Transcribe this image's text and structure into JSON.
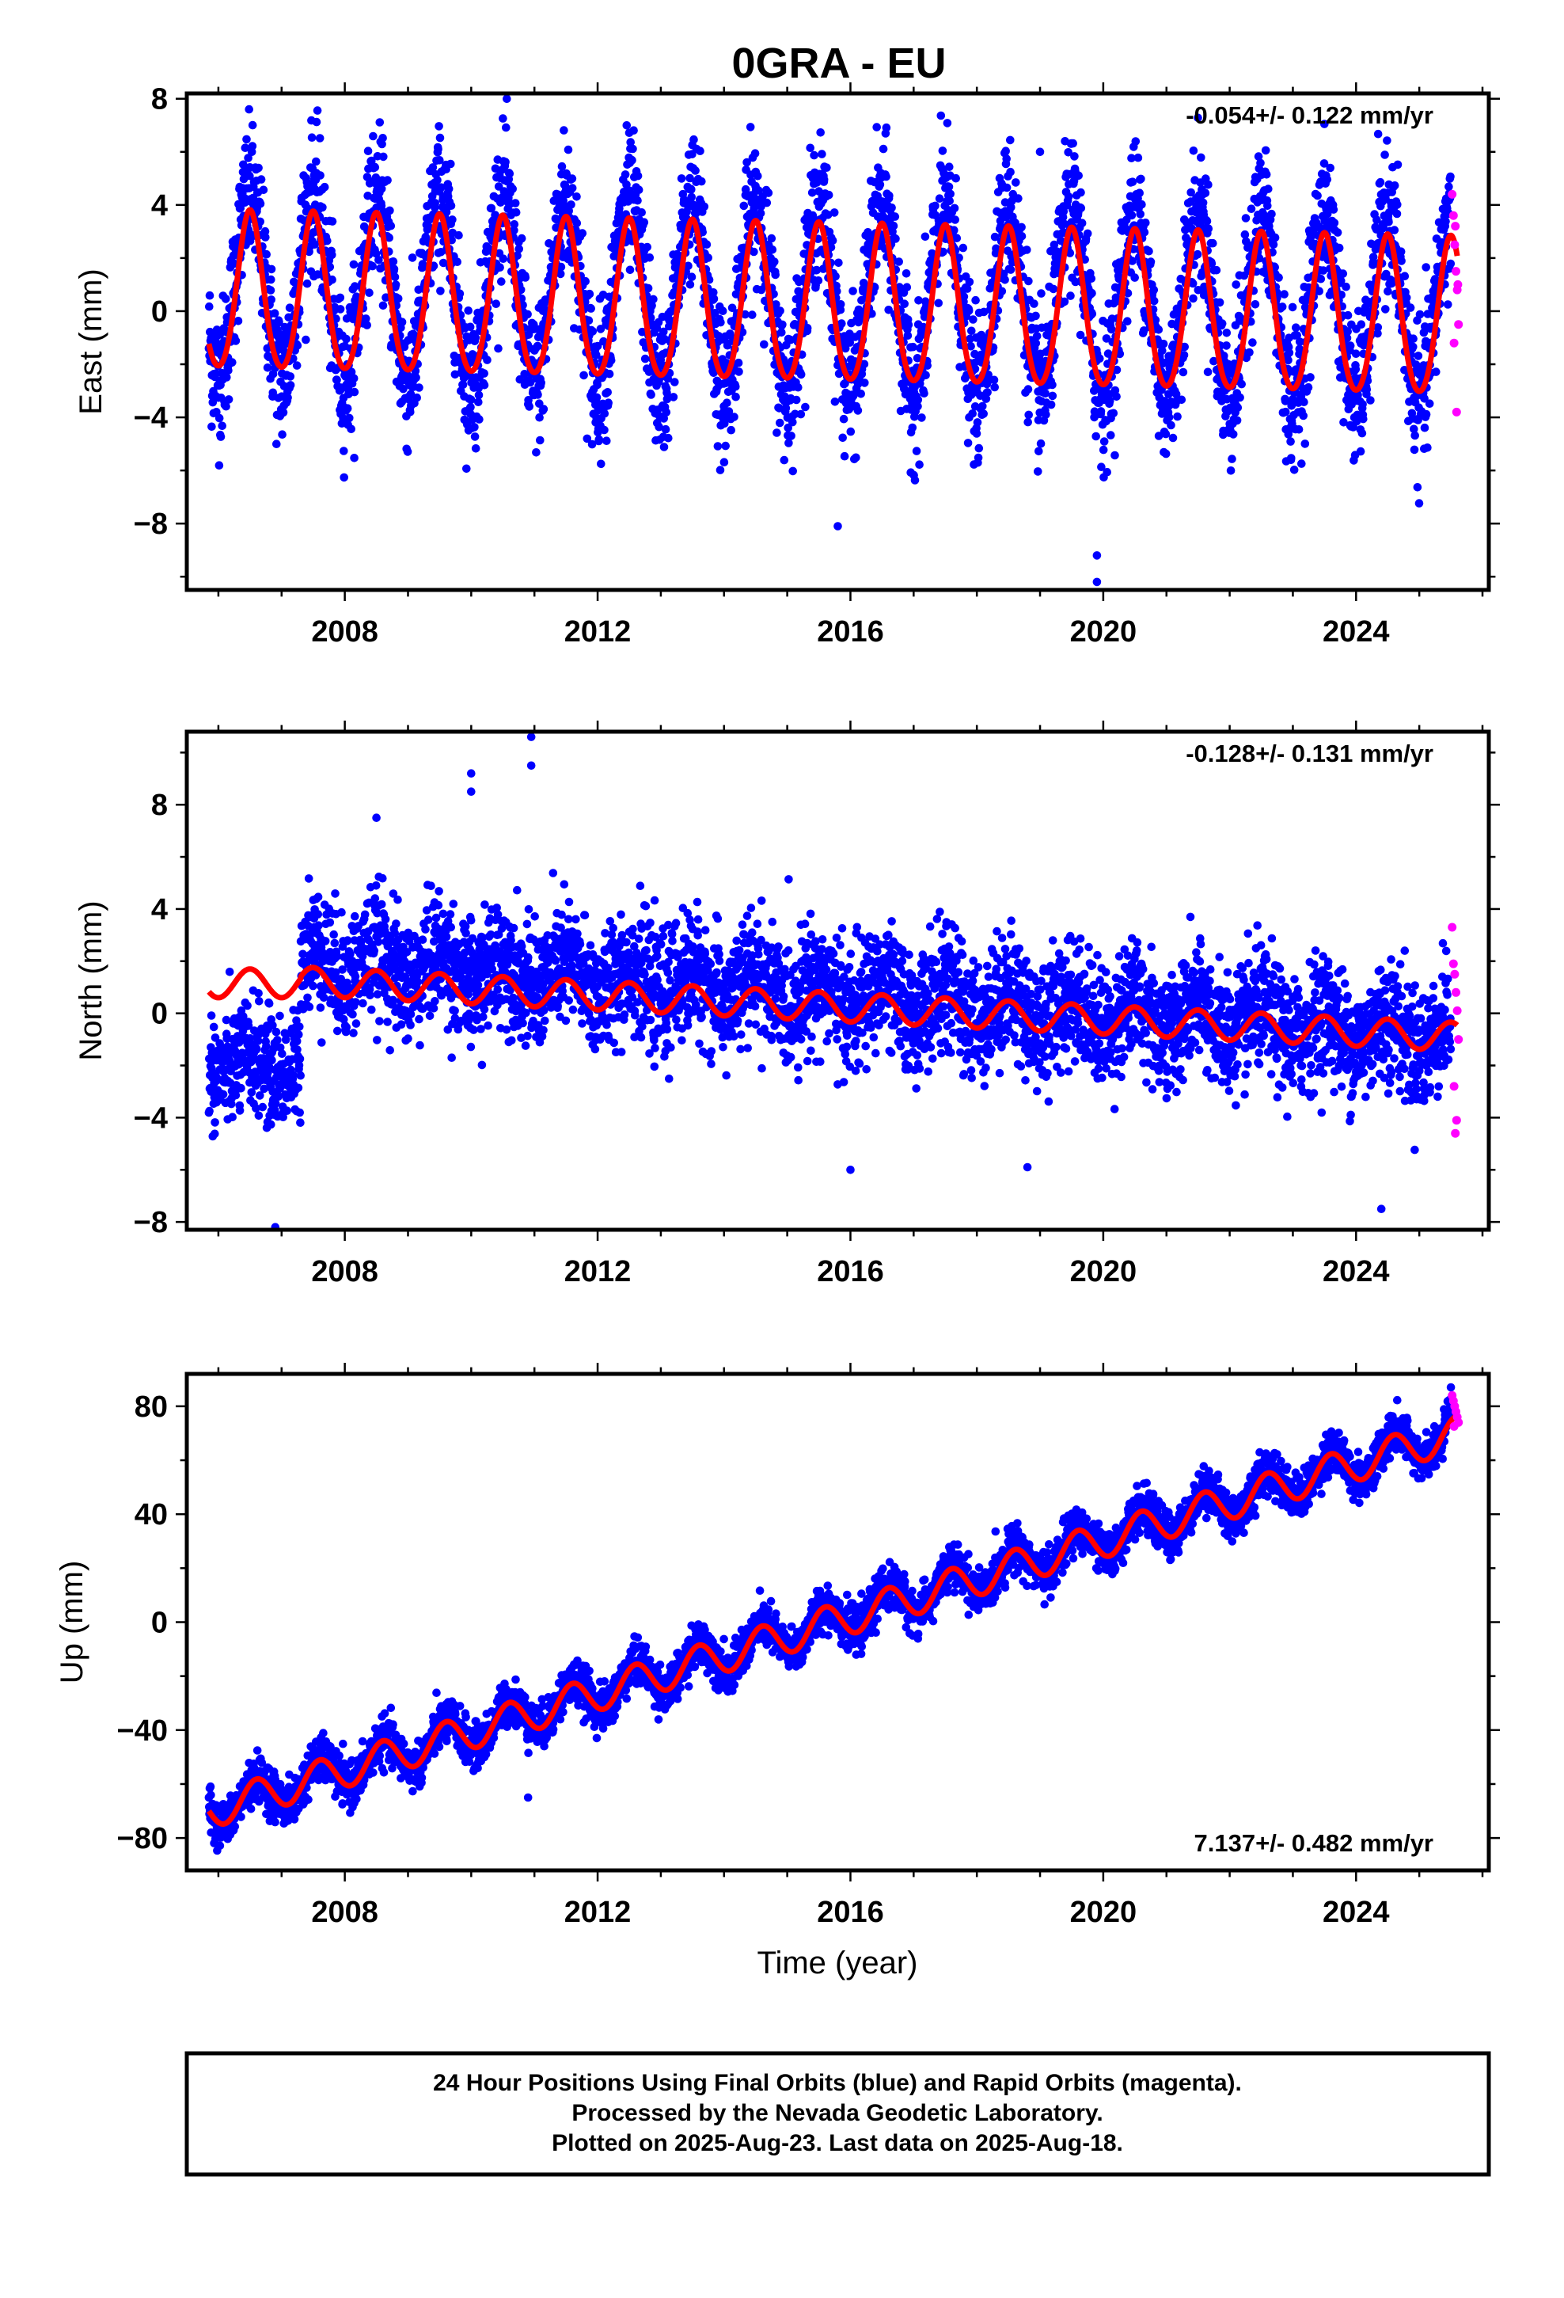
{
  "title": "0GRA - EU",
  "x_axis_label": "Time (year)",
  "caption": [
    "24 Hour Positions Using Final Orbits (blue) and Rapid Orbits (magenta).",
    "Processed by the Nevada Geodetic Laboratory.",
    "Plotted on 2025-Aug-23. Last data on 2025-Aug-18."
  ],
  "colors": {
    "final_orbits": "#0000ff",
    "rapid_orbits": "#ff00ff",
    "model_fit": "#ff0000",
    "frame": "#000000"
  },
  "chart_data": [
    {
      "type": "scatter",
      "ylabel": "East (mm)",
      "rate_text": "-0.054+/- 0.122 mm/yr",
      "rate_position": "top-right",
      "xlim": [
        2005.5,
        2026.1
      ],
      "ylim": [
        -10.5,
        8.2
      ],
      "x_ticks": [
        2008,
        2012,
        2016,
        2020,
        2024
      ],
      "y_ticks": [
        -8,
        -4,
        0,
        4,
        8
      ],
      "grid": false,
      "series": [
        {
          "role": "final_orbits",
          "color": "#0000ff",
          "x_range": [
            2005.85,
            2025.5
          ],
          "trend_start": 1.0,
          "trend_end": 0.0,
          "annual_amplitude": 3.4,
          "annual_peak_fraction": 0.5,
          "scatter_sd": 1.3,
          "outliers": [
            [
              2019.9,
              -10.2
            ],
            [
              2019.9,
              -9.2
            ],
            [
              2015.8,
              -8.1
            ],
            [
              2019.0,
              6.0
            ]
          ]
        },
        {
          "role": "rapid_orbits",
          "color": "#ff00ff",
          "x": [
            2025.52,
            2025.54,
            2025.56,
            2025.58,
            2025.6,
            2025.62,
            2025.55,
            2025.59,
            2025.57,
            2025.61
          ],
          "y": [
            4.4,
            3.6,
            2.5,
            1.5,
            0.8,
            -0.5,
            -1.2,
            -3.8,
            3.2,
            1.0
          ]
        },
        {
          "role": "model_fit",
          "color": "#ff0000",
          "x_range": [
            2005.85,
            2025.6
          ],
          "trend_start": 0.6,
          "trend_end": -0.4,
          "annual_amplitude": 2.95,
          "annual_peak_fraction": 0.5,
          "semiannual_amplitude": 0.3
        }
      ]
    },
    {
      "type": "scatter",
      "ylabel": "North (mm)",
      "rate_text": "-0.128+/- 0.131 mm/yr",
      "rate_position": "top-right",
      "xlim": [
        2005.5,
        2026.1
      ],
      "ylim": [
        -8.3,
        10.8
      ],
      "x_ticks": [
        2008,
        2012,
        2016,
        2020,
        2024
      ],
      "y_ticks": [
        -8,
        -4,
        0,
        4,
        8
      ],
      "grid": false,
      "offset_epoch": 2007.3,
      "series": [
        {
          "role": "final_orbits",
          "color": "#0000ff",
          "x_range": [
            2005.85,
            2025.5
          ],
          "segment_before_offset_mean": -2.0,
          "trend_start": 2.3,
          "trend_end": -0.9,
          "annual_amplitude": 0.6,
          "annual_peak_fraction": 0.5,
          "scatter_sd": 1.15,
          "outliers": [
            [
              2010.0,
              9.2
            ],
            [
              2010.0,
              8.5
            ],
            [
              2010.95,
              10.6
            ],
            [
              2010.95,
              9.5
            ],
            [
              2008.5,
              7.5
            ],
            [
              2006.9,
              -8.2
            ],
            [
              2024.4,
              -7.5
            ],
            [
              2016.0,
              -6.0
            ],
            [
              2018.8,
              -5.9
            ]
          ]
        },
        {
          "role": "rapid_orbits",
          "color": "#ff00ff",
          "x": [
            2025.52,
            2025.54,
            2025.56,
            2025.58,
            2025.6,
            2025.62,
            2025.55,
            2025.59,
            2025.57
          ],
          "y": [
            3.3,
            1.9,
            1.5,
            0.8,
            0.1,
            -1.0,
            -2.8,
            -4.1,
            -4.6
          ]
        },
        {
          "role": "model_fit",
          "color": "#ff0000",
          "x_range": [
            2005.85,
            2025.6
          ],
          "trend_start": 1.4,
          "trend_end": -0.9,
          "annual_amplitude": 0.55,
          "annual_peak_fraction": 0.5
        }
      ]
    },
    {
      "type": "scatter",
      "ylabel": "Up (mm)",
      "rate_text": "7.137+/- 0.482 mm/yr",
      "rate_position": "bottom-right",
      "xlim": [
        2005.5,
        2026.1
      ],
      "ylim": [
        -92,
        92
      ],
      "x_ticks": [
        2008,
        2012,
        2016,
        2020,
        2024
      ],
      "y_ticks": [
        -80,
        -40,
        0,
        40,
        80
      ],
      "grid": false,
      "series": [
        {
          "role": "final_orbits",
          "color": "#0000ff",
          "x_range": [
            2005.85,
            2025.5
          ],
          "trend_start": -70.0,
          "trend_end": 70.0,
          "annual_amplitude": 6.5,
          "annual_peak_fraction": 0.6,
          "scatter_sd": 4.0,
          "outliers": [
            [
              2010.9,
              -65.0
            ],
            [
              2025.5,
              87.0
            ]
          ]
        },
        {
          "role": "rapid_orbits",
          "color": "#ff00ff",
          "x": [
            2025.52,
            2025.54,
            2025.56,
            2025.58,
            2025.6,
            2025.62,
            2025.55
          ],
          "y": [
            84.0,
            82.0,
            80.0,
            78.0,
            76.0,
            74.0,
            72.5
          ]
        },
        {
          "role": "model_fit",
          "color": "#ff0000",
          "x_range": [
            2005.85,
            2025.6
          ],
          "trend_start": -70.0,
          "trend_end": 70.0,
          "annual_amplitude": 6.5,
          "annual_peak_fraction": 0.6
        }
      ]
    }
  ]
}
